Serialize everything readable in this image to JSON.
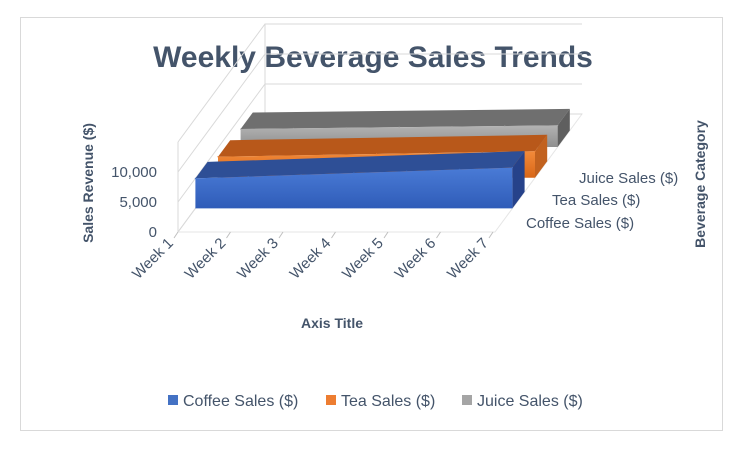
{
  "chart_data": {
    "type": "area",
    "title": "Weekly Beverage Sales Trends",
    "xlabel": "Axis Title",
    "ylabel": "Sales Revenue ($)",
    "zlabel": "Beverage Category",
    "categories": [
      "Week 1",
      "Week 2",
      "Week 3",
      "Week 4",
      "Week 5",
      "Week 6",
      "Week 7"
    ],
    "y_ticks": [
      "0",
      "5,000",
      "10,000"
    ],
    "ylim": [
      0,
      10000
    ],
    "grid": true,
    "legend_position": "bottom",
    "series": [
      {
        "name": "Coffee Sales ($)",
        "color": "#4472c4",
        "values": [
          5000,
          5300,
          5600,
          5900,
          6200,
          6500,
          6800
        ]
      },
      {
        "name": "Tea Sales ($)",
        "color": "#ed7d31",
        "values": [
          3500,
          3650,
          3800,
          3950,
          4100,
          4250,
          4400
        ]
      },
      {
        "name": "Juice Sales ($)",
        "color": "#a5a5a5",
        "values": [
          3000,
          3100,
          3200,
          3300,
          3400,
          3500,
          3600
        ]
      }
    ]
  }
}
